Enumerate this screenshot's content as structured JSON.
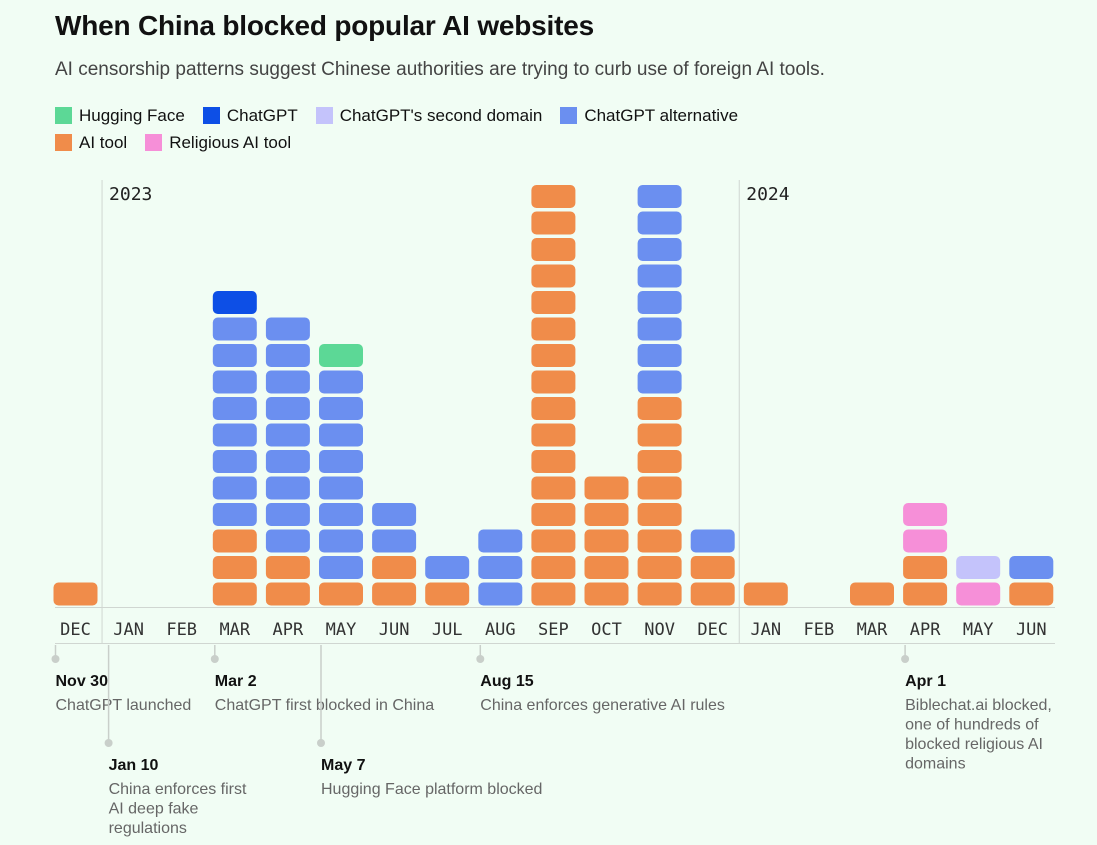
{
  "chart_data": {
    "type": "bar",
    "stacked": true,
    "title": "When China blocked popular AI websites",
    "subtitle": "AI censorship patterns suggest Chinese authorities are trying to curb use of foreign AI tools.",
    "legend": [
      {
        "key": "hf",
        "label": "Hugging Face",
        "color": "#5cd896"
      },
      {
        "key": "gpt",
        "label": "ChatGPT",
        "color": "#0d4fe6"
      },
      {
        "key": "gpt2",
        "label": "ChatGPT's second domain",
        "color": "#c4c3fb"
      },
      {
        "key": "alt",
        "label": "ChatGPT alternative",
        "color": "#6b8ff0"
      },
      {
        "key": "tool",
        "label": "AI tool",
        "color": "#f08c4a"
      },
      {
        "key": "rel",
        "label": "Religious AI tool",
        "color": "#f68fd8"
      }
    ],
    "year_labels": [
      {
        "label": "2023",
        "at_month_index": 1
      },
      {
        "label": "2024",
        "at_month_index": 13
      }
    ],
    "months": [
      {
        "label": "DEC",
        "stack": [
          "tool"
        ]
      },
      {
        "label": "JAN",
        "stack": []
      },
      {
        "label": "FEB",
        "stack": []
      },
      {
        "label": "MAR",
        "stack": [
          "tool",
          "tool",
          "tool",
          "alt",
          "alt",
          "alt",
          "alt",
          "alt",
          "alt",
          "alt",
          "alt",
          "gpt"
        ]
      },
      {
        "label": "APR",
        "stack": [
          "tool",
          "tool",
          "alt",
          "alt",
          "alt",
          "alt",
          "alt",
          "alt",
          "alt",
          "alt",
          "alt"
        ]
      },
      {
        "label": "MAY",
        "stack": [
          "tool",
          "alt",
          "alt",
          "alt",
          "alt",
          "alt",
          "alt",
          "alt",
          "alt",
          "hf"
        ]
      },
      {
        "label": "JUN",
        "stack": [
          "tool",
          "tool",
          "alt",
          "alt"
        ]
      },
      {
        "label": "JUL",
        "stack": [
          "tool",
          "alt"
        ]
      },
      {
        "label": "AUG",
        "stack": [
          "alt",
          "alt",
          "alt"
        ]
      },
      {
        "label": "SEP",
        "stack": [
          "tool",
          "tool",
          "tool",
          "tool",
          "tool",
          "tool",
          "tool",
          "tool",
          "tool",
          "tool",
          "tool",
          "tool",
          "tool",
          "tool",
          "tool",
          "tool"
        ]
      },
      {
        "label": "OCT",
        "stack": [
          "tool",
          "tool",
          "tool",
          "tool",
          "tool"
        ]
      },
      {
        "label": "NOV",
        "stack": [
          "tool",
          "tool",
          "tool",
          "tool",
          "tool",
          "tool",
          "tool",
          "tool",
          "alt",
          "alt",
          "alt",
          "alt",
          "alt",
          "alt",
          "alt",
          "alt"
        ]
      },
      {
        "label": "DEC",
        "stack": [
          "tool",
          "tool",
          "alt"
        ]
      },
      {
        "label": "JAN",
        "stack": [
          "tool"
        ]
      },
      {
        "label": "FEB",
        "stack": []
      },
      {
        "label": "MAR",
        "stack": [
          "tool"
        ]
      },
      {
        "label": "APR",
        "stack": [
          "tool",
          "tool",
          "rel",
          "rel"
        ]
      },
      {
        "label": "MAY",
        "stack": [
          "rel",
          "gpt2"
        ]
      },
      {
        "label": "JUN",
        "stack": [
          "tool",
          "alt"
        ]
      }
    ],
    "annotations": [
      {
        "month_index": 0,
        "date": "Nov 30",
        "lines": [
          "ChatGPT launched"
        ],
        "level": 1
      },
      {
        "month_index": 1,
        "date": "Jan 10",
        "lines": [
          "China enforces first",
          "AI deep fake",
          "regulations"
        ],
        "level": 2
      },
      {
        "month_index": 3,
        "date": "Mar 2",
        "lines": [
          "ChatGPT first blocked in China"
        ],
        "level": 1
      },
      {
        "month_index": 5,
        "date": "May 7",
        "lines": [
          "Hugging Face platform blocked"
        ],
        "level": 2
      },
      {
        "month_index": 8,
        "date": "Aug 15",
        "lines": [
          "China enforces generative AI rules"
        ],
        "level": 1
      },
      {
        "month_index": 16,
        "date": "Apr 1",
        "lines": [
          "Biblechat.ai blocked,",
          "one of hundreds of",
          "blocked religious AI",
          "domains"
        ],
        "level": 1
      }
    ]
  }
}
